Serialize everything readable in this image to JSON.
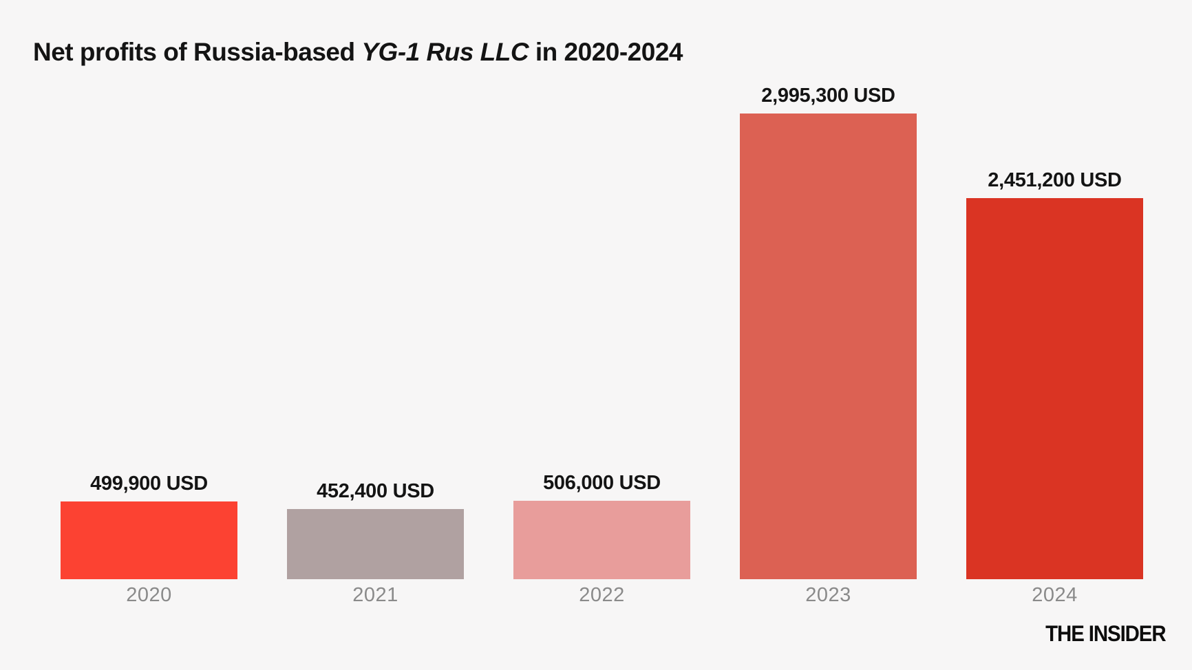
{
  "title": {
    "prefix": "Net profits of Russia-based ",
    "emphasis": "YG-1 Rus LLC",
    "suffix": " in 2020-2024"
  },
  "chart_data": {
    "type": "bar",
    "title": "Net profits of Russia-based YG-1 Rus LLC in 2020-2024",
    "categories": [
      "2020",
      "2021",
      "2022",
      "2023",
      "2024"
    ],
    "values": [
      499900,
      452400,
      506000,
      2995300,
      2451200
    ],
    "value_labels": [
      "499,900 USD",
      "452,400 USD",
      "506,000 USD",
      "2,995,300 USD",
      "2,451,200 USD"
    ],
    "bar_colors": [
      "#fc4232",
      "#b0a1a1",
      "#e89d9b",
      "#dc6153",
      "#da3423"
    ],
    "unit": "USD",
    "xlabel": "",
    "ylabel": "",
    "ylim": [
      0,
      2995300
    ],
    "grid": false,
    "legend": null,
    "value_label_position": "above-bar",
    "category_label_position": "below-bar"
  },
  "branding": {
    "logo_text": "THE INSIDER"
  },
  "colors": {
    "background": "#f7f6f6",
    "title_text": "#141414",
    "value_label_text": "#141414",
    "year_label_text": "#8a8a8a",
    "logo_text": "#0d0d0d"
  }
}
